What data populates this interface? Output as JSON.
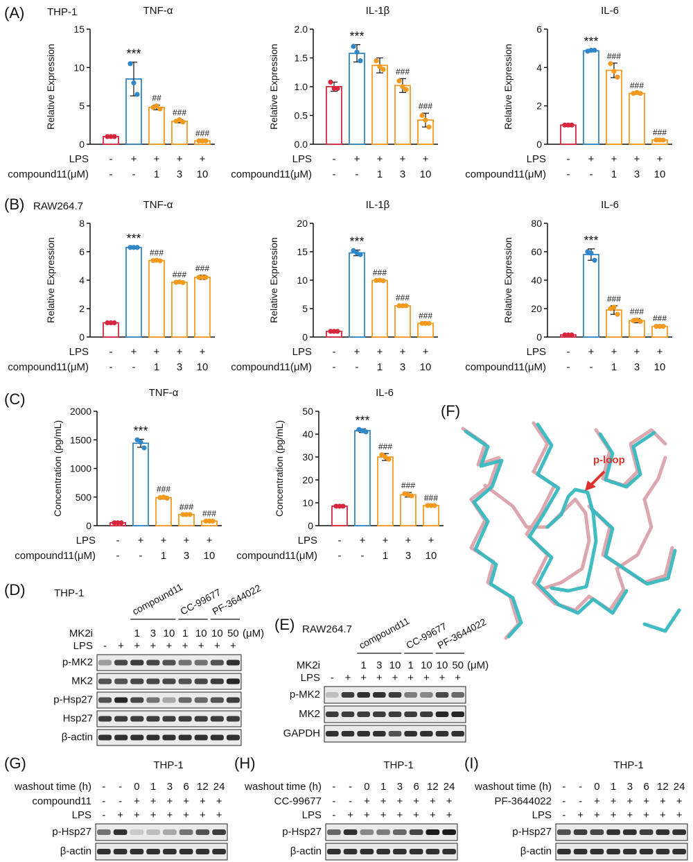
{
  "colors": {
    "red": "#d7263d",
    "blue": "#2f86c9",
    "orange": "#f39a1e",
    "structure_teal": "#37b8c0",
    "structure_pink": "#d79ea6",
    "arrow": "#e0322d"
  },
  "panel_letters": {
    "A": "(A)",
    "B": "(B)",
    "C": "(C)",
    "D": "(D)",
    "E": "(E)",
    "F": "(F)",
    "G": "(G)",
    "H": "(H)",
    "I": "(I)"
  },
  "treatment_rows": {
    "lps_label": "LPS",
    "lps": [
      "-",
      "+",
      "+",
      "+",
      "+"
    ],
    "cmpd_label": "compound11(μM)",
    "cmpd": [
      "-",
      "-",
      "1",
      "3",
      "10"
    ]
  },
  "chart_data": [
    {
      "id": "A1",
      "type": "bar",
      "cell_label": "THP-1",
      "title": "TNF-α",
      "ylabel": "Relative Expression",
      "ylim": [
        0,
        15
      ],
      "yticks": [
        0,
        5,
        10,
        15
      ],
      "values": [
        1.0,
        8.5,
        4.8,
        3.0,
        0.45
      ],
      "errors": [
        0.1,
        2.2,
        0.3,
        0.2,
        0.05
      ],
      "points": [
        [
          1,
          1,
          1
        ],
        [
          10.5,
          8.0,
          6.5
        ],
        [
          4.8,
          5.0,
          4.6
        ],
        [
          3.0,
          3.2,
          2.9
        ],
        [
          0.45,
          0.45,
          0.45
        ]
      ],
      "sig": [
        "",
        "***",
        "##",
        "###",
        "###"
      ]
    },
    {
      "id": "A2",
      "type": "bar",
      "title": "IL-1β",
      "ylabel": "Relative Expression",
      "ylim": [
        0,
        2.0
      ],
      "yticks": [
        0,
        0.5,
        1.0,
        1.5,
        2.0
      ],
      "tick_labels": [
        "0.0",
        "0.5",
        "1.0",
        "1.5",
        "2.0"
      ],
      "values": [
        1.0,
        1.58,
        1.37,
        1.02,
        0.42
      ],
      "errors": [
        0.08,
        0.15,
        0.13,
        0.12,
        0.12
      ],
      "points": [
        [
          1.08,
          0.97,
          0.97
        ],
        [
          1.7,
          1.6,
          1.45
        ],
        [
          1.45,
          1.35,
          1.3
        ],
        [
          1.1,
          1.0,
          0.95
        ],
        [
          0.5,
          0.42,
          0.3
        ]
      ],
      "sig": [
        "",
        "***",
        "",
        "###",
        "###"
      ]
    },
    {
      "id": "A3",
      "type": "bar",
      "title": "IL-6",
      "ylabel": "Relative Expression",
      "ylim": [
        0,
        6
      ],
      "yticks": [
        0,
        2,
        4,
        6
      ],
      "values": [
        1.0,
        4.87,
        3.85,
        2.65,
        0.22
      ],
      "errors": [
        0.03,
        0.05,
        0.38,
        0.05,
        0.03
      ],
      "points": [
        [
          1,
          1,
          1
        ],
        [
          4.85,
          4.9,
          4.9
        ],
        [
          4.2,
          3.8,
          3.5
        ],
        [
          2.65,
          2.7,
          2.65
        ],
        [
          0.22,
          0.22,
          0.22
        ]
      ],
      "sig": [
        "",
        "***",
        "###",
        "###",
        "###"
      ]
    },
    {
      "id": "B1",
      "type": "bar",
      "cell_label": "RAW264.7",
      "title": "TNF-α",
      "ylabel": "Relative Expression",
      "ylim": [
        0,
        8
      ],
      "yticks": [
        0,
        2,
        4,
        6,
        8
      ],
      "values": [
        1.0,
        6.3,
        5.38,
        3.85,
        4.2
      ],
      "errors": [
        0.08,
        0.03,
        0.05,
        0.06,
        0.15
      ],
      "points": [
        [
          1,
          1,
          1
        ],
        [
          6.3,
          6.3,
          6.3
        ],
        [
          5.38,
          5.4,
          5.36
        ],
        [
          3.85,
          3.88,
          3.83
        ],
        [
          4.2,
          4.2,
          4.2
        ]
      ],
      "sig": [
        "",
        "***",
        "###",
        "###",
        "###"
      ]
    },
    {
      "id": "B2",
      "type": "bar",
      "title": "IL-1β",
      "ylabel": "Relative Expression",
      "ylim": [
        0,
        20
      ],
      "yticks": [
        0,
        5,
        10,
        15,
        20
      ],
      "values": [
        1.0,
        14.8,
        9.95,
        5.5,
        2.4
      ],
      "errors": [
        0.05,
        0.5,
        0.15,
        0.15,
        0.1
      ],
      "points": [
        [
          1,
          1,
          1
        ],
        [
          15.2,
          14.8,
          14.5
        ],
        [
          9.95,
          10.0,
          9.9
        ],
        [
          5.5,
          5.5,
          5.5
        ],
        [
          2.4,
          2.4,
          2.4
        ]
      ],
      "sig": [
        "",
        "***",
        "###",
        "###",
        "###"
      ]
    },
    {
      "id": "B3",
      "type": "bar",
      "title": "IL-6",
      "ylabel": "Relative Expression",
      "ylim": [
        0,
        80
      ],
      "yticks": [
        0,
        20,
        40,
        60,
        80
      ],
      "values": [
        1.5,
        58,
        19,
        11.5,
        7.5
      ],
      "errors": [
        0.3,
        4,
        3,
        1.5,
        0.8
      ],
      "points": [
        [
          1.5,
          1.5,
          1.5
        ],
        [
          60,
          59,
          54
        ],
        [
          20,
          21,
          16
        ],
        [
          11.5,
          12,
          11
        ],
        [
          7.5,
          7.5,
          7.5
        ]
      ],
      "sig": [
        "",
        "***",
        "###",
        "###",
        "###"
      ]
    },
    {
      "id": "C1",
      "type": "bar",
      "title": "TNF-α",
      "ylabel": "Concentration (pg/mL)",
      "ylim": [
        0,
        2000
      ],
      "yticks": [
        0,
        500,
        1000,
        1500,
        2000
      ],
      "values": [
        50,
        1440,
        490,
        195,
        80
      ],
      "errors": [
        10,
        70,
        25,
        10,
        8
      ],
      "points": [
        [
          50,
          50,
          50
        ],
        [
          1500,
          1460,
          1360
        ],
        [
          490,
          500,
          480
        ],
        [
          195,
          195,
          195
        ],
        [
          80,
          80,
          80
        ]
      ],
      "sig": [
        "",
        "***",
        "###",
        "###",
        "###"
      ]
    },
    {
      "id": "C2",
      "type": "bar",
      "title": "IL-6",
      "ylabel": "Concentration (pg/mL)",
      "ylim": [
        0,
        50
      ],
      "yticks": [
        0,
        10,
        20,
        30,
        40,
        50
      ],
      "values": [
        8.5,
        41.5,
        30,
        13.5,
        8.8
      ],
      "errors": [
        0.2,
        0.8,
        1.5,
        1.0,
        0.3
      ],
      "points": [
        [
          8.5,
          8.5,
          8.5
        ],
        [
          42,
          41.5,
          41
        ],
        [
          31,
          30,
          29
        ],
        [
          14,
          13.5,
          13
        ],
        [
          8.8,
          8.8,
          8.8
        ]
      ],
      "sig": [
        "",
        "***",
        "###",
        "###",
        "###"
      ]
    }
  ],
  "blots": {
    "D": {
      "cell": "THP-1",
      "groups": [
        "compound11",
        "CC-99677",
        "PF-3644022"
      ],
      "mk2i_label": "MK2i",
      "mk2i": [
        "1",
        "3",
        "10",
        "1",
        "10",
        "10",
        "50"
      ],
      "unit": "(μM)",
      "lps_label": "LPS",
      "lps": [
        "-",
        "+",
        "+",
        "+",
        "+",
        "+",
        "+",
        "+",
        "+"
      ],
      "rows": [
        "p-MK2",
        "MK2",
        "p-Hsp27",
        "Hsp27",
        "β-actin"
      ]
    },
    "E": {
      "cell": "RAW264.7",
      "groups": [
        "compound11",
        "CC-99677",
        "PF-3644022"
      ],
      "mk2i_label": "MK2i",
      "mk2i": [
        "1",
        "3",
        "10",
        "1",
        "10",
        "10",
        "50"
      ],
      "unit": "(μM)",
      "lps_label": "LPS",
      "lps": [
        "-",
        "+",
        "+",
        "+",
        "+",
        "+",
        "+",
        "+",
        "+"
      ],
      "rows": [
        "p-MK2",
        "MK2",
        "GAPDH"
      ]
    },
    "G": {
      "cell": "THP-1",
      "washout_label": "washout time (h)",
      "washout": [
        "-",
        "-",
        "0",
        "1",
        "3",
        "6",
        "12",
        "24"
      ],
      "drug_label": "compound11",
      "drug": [
        "-",
        "-",
        "+",
        "+",
        "+",
        "+",
        "+",
        "+"
      ],
      "lps_label": "LPS",
      "lps": [
        "-",
        "+",
        "+",
        "+",
        "+",
        "+",
        "+",
        "+"
      ],
      "rows": [
        "p-Hsp27",
        "β-actin"
      ]
    },
    "H": {
      "cell": "THP-1",
      "washout_label": "washout time (h)",
      "washout": [
        "-",
        "-",
        "0",
        "1",
        "3",
        "6",
        "12",
        "24"
      ],
      "drug_label": "CC-99677",
      "drug": [
        "-",
        "-",
        "+",
        "+",
        "+",
        "+",
        "+",
        "+"
      ],
      "lps_label": "LPS",
      "lps": [
        "-",
        "+",
        "+",
        "+",
        "+",
        "+",
        "+",
        "+"
      ],
      "rows": [
        "p-Hsp27",
        "β-actin"
      ]
    },
    "I": {
      "cell": "THP-1",
      "washout_label": "washout time (h)",
      "washout": [
        "-",
        "-",
        "0",
        "1",
        "3",
        "6",
        "12",
        "24"
      ],
      "drug_label": "PF-3644022",
      "drug": [
        "-",
        "-",
        "+",
        "+",
        "+",
        "+",
        "+",
        "+"
      ],
      "lps_label": "LPS",
      "lps": [
        "-",
        "+",
        "+",
        "+",
        "+",
        "+",
        "+",
        "+"
      ],
      "rows": [
        "p-Hsp27",
        "β-actin"
      ]
    }
  },
  "structure": {
    "annotation": "p-loop"
  }
}
